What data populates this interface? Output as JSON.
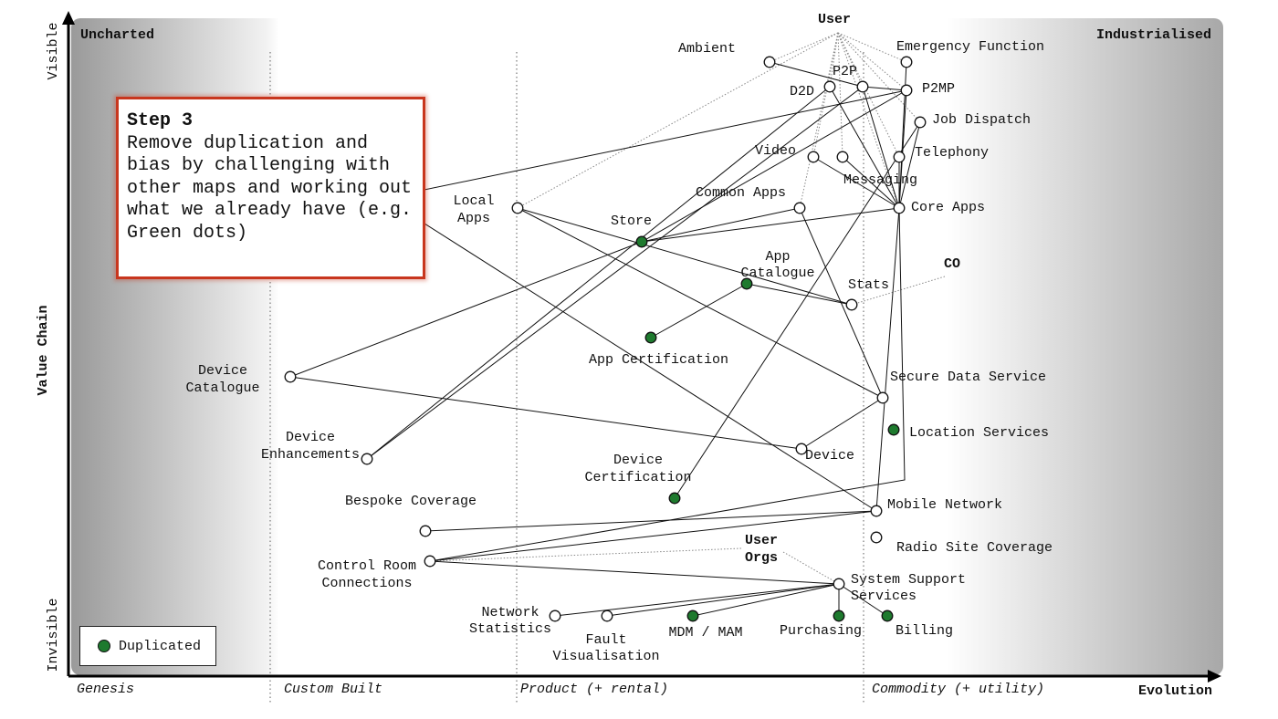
{
  "colors": {
    "duplicated": "#1e7a2e",
    "step_border": "#c8361e",
    "line": "#111111"
  },
  "axes": {
    "y_top": "Visible",
    "y_middle": "Value Chain",
    "y_bottom": "Invisible",
    "x_end": "Evolution"
  },
  "corners": {
    "top_left": "Uncharted",
    "top_right": "Industrialised"
  },
  "stages": [
    "Genesis",
    "Custom Built",
    "Product (+ rental)",
    "Commodity (+ utility)"
  ],
  "step": {
    "title": "Step 3",
    "body": "Remove duplication and bias by challenging with other maps and working out what we already have (e.g. Green dots)"
  },
  "legend": {
    "label": "Duplicated"
  },
  "anchors": {
    "user": "User",
    "co": "CO",
    "user_orgs": [
      "User",
      "Orgs"
    ]
  },
  "nodes": {
    "ambient": {
      "label": [
        "Ambient"
      ],
      "duplicated": false
    },
    "emergency": {
      "label": [
        "Emergency Function"
      ],
      "duplicated": false
    },
    "p2p": {
      "label": [
        "P2P"
      ],
      "duplicated": false
    },
    "d2d": {
      "label": [
        "D2D"
      ],
      "duplicated": false
    },
    "p2mp": {
      "label": [
        "P2MP"
      ],
      "duplicated": false
    },
    "job_dispatch": {
      "label": [
        "Job Dispatch"
      ],
      "duplicated": false
    },
    "video": {
      "label": [
        "Video"
      ],
      "duplicated": false
    },
    "telephony": {
      "label": [
        "Telephony"
      ],
      "duplicated": false
    },
    "messaging": {
      "label": [
        "Messaging"
      ],
      "duplicated": false
    },
    "core_apps": {
      "label": [
        "Core Apps"
      ],
      "duplicated": false
    },
    "common_apps": {
      "label": [
        "Common Apps"
      ],
      "duplicated": false
    },
    "local_apps": {
      "label": [
        "Local",
        "Apps"
      ],
      "duplicated": false
    },
    "store": {
      "label": [
        "Store"
      ],
      "duplicated": true
    },
    "app_catalogue": {
      "label": [
        "App",
        "Catalogue"
      ],
      "duplicated": true
    },
    "stats": {
      "label": [
        "Stats"
      ],
      "duplicated": false
    },
    "app_certification": {
      "label": [
        "App Certification"
      ],
      "duplicated": true
    },
    "device_catalogue": {
      "label": [
        "Device",
        "Catalogue"
      ],
      "duplicated": false
    },
    "secure_data": {
      "label": [
        "Secure Data Service"
      ],
      "duplicated": false
    },
    "location": {
      "label": [
        "Location Services"
      ],
      "duplicated": true
    },
    "device_enhancements": {
      "label": [
        "Device",
        "Enhancements"
      ],
      "duplicated": false
    },
    "device": {
      "label": [
        "Device"
      ],
      "duplicated": false
    },
    "device_certification": {
      "label": [
        "Device",
        "Certification"
      ],
      "duplicated": true
    },
    "bespoke_coverage": {
      "label": [
        "Bespoke Coverage"
      ],
      "duplicated": false
    },
    "mobile_network": {
      "label": [
        "Mobile Network"
      ],
      "duplicated": false
    },
    "radio_site": {
      "label": [
        "Radio Site Coverage"
      ],
      "duplicated": false
    },
    "control_room": {
      "label": [
        "Control Room",
        "Connections"
      ],
      "duplicated": false
    },
    "system_support": {
      "label": [
        "System Support",
        "Services"
      ],
      "duplicated": false
    },
    "network_stats": {
      "label": [
        "Network",
        "Statistics"
      ],
      "duplicated": false
    },
    "fault_vis": {
      "label": [
        "Fault",
        "Visualisation"
      ],
      "duplicated": false
    },
    "mdm_mam": {
      "label": [
        "MDM / MAM"
      ],
      "duplicated": true
    },
    "purchasing": {
      "label": [
        "Purchasing"
      ],
      "duplicated": true
    },
    "billing": {
      "label": [
        "Billing"
      ],
      "duplicated": true
    }
  }
}
